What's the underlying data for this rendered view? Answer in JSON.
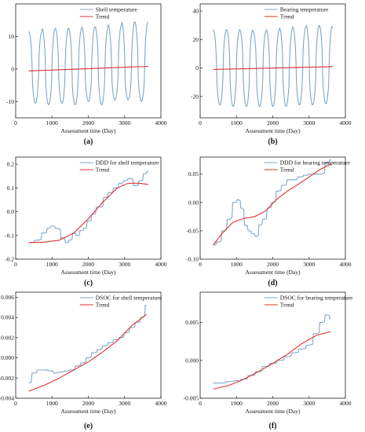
{
  "chart_data": [
    {
      "type": "line",
      "panel_label": "(a)",
      "xlabel": "Assessment time (Day)",
      "ylabel": "",
      "xlim": [
        0,
        4000
      ],
      "ylim": [
        -15,
        20
      ],
      "xticks": [
        "0",
        "1000",
        "2000",
        "3000",
        "4000"
      ],
      "yticks": [
        "-10",
        "0",
        "10"
      ],
      "yticks_values": [
        -10,
        0,
        10
      ],
      "legend_position": "top-right",
      "series": [
        {
          "name": "Shell temperature",
          "color": "#7fa7c6",
          "style": "seasonal",
          "x_start": 360,
          "x_end": 3650,
          "period": 365,
          "phase_day": 360,
          "baseline": 0,
          "amp_pos": [
            11.5,
            12.5,
            12.5,
            12.5,
            13,
            13,
            13.5,
            14.5,
            14.5,
            14.5
          ],
          "amp_neg": [
            -10.5,
            -11,
            -10.5,
            -11,
            -10,
            -11,
            -9.5,
            -9.5,
            -10,
            -9.5
          ]
        },
        {
          "name": "Trend",
          "color": "#e03030",
          "x": [
            360,
            3650
          ],
          "y": [
            -0.6,
            0.8
          ]
        }
      ]
    },
    {
      "type": "line",
      "panel_label": "(b)",
      "xlabel": "Assessment time (Day)",
      "ylabel": "",
      "xlim": [
        0,
        4000
      ],
      "ylim": [
        -35,
        45
      ],
      "xticks": [
        "0",
        "1000",
        "2000",
        "3000",
        "4000"
      ],
      "yticks": [
        "-20",
        "0",
        "20",
        "40"
      ],
      "yticks_values": [
        -20,
        0,
        20,
        40
      ],
      "legend_position": "top-right",
      "series": [
        {
          "name": "Bearing temperature",
          "color": "#7fa7c6",
          "style": "seasonal",
          "x_start": 360,
          "x_end": 3650,
          "period": 365,
          "phase_day": 360,
          "baseline": 0,
          "amp_pos": [
            27,
            27,
            27,
            26,
            27,
            28,
            29,
            30,
            30,
            28
          ],
          "amp_neg": [
            -26,
            -27,
            -27,
            -27,
            -27,
            -27,
            -26,
            -26,
            -25,
            -26
          ]
        },
        {
          "name": "Trend",
          "color": "#e03030",
          "x": [
            360,
            3650
          ],
          "y": [
            -1,
            1
          ]
        }
      ]
    },
    {
      "type": "line",
      "panel_label": "(c)",
      "xlabel": "Assessment time (Day)",
      "ylabel": "",
      "xlim": [
        0,
        4000
      ],
      "ylim": [
        -0.2,
        0.23
      ],
      "xticks": [
        "0",
        "1000",
        "2000",
        "3000",
        "4000"
      ],
      "yticks": [
        "-0.2",
        "-0.1",
        "0.0",
        "0.1",
        "0.2"
      ],
      "yticks_values": [
        -0.2,
        -0.1,
        0.0,
        0.1,
        0.2
      ],
      "legend_position": "top-right",
      "series": [
        {
          "name": "DDD for shell temperature",
          "color": "#7fa7c6",
          "style": "step",
          "x": [
            400,
            600,
            800,
            900,
            1000,
            1150,
            1300,
            1400,
            1500,
            1600,
            1700,
            1800,
            1900,
            2000,
            2150,
            2250,
            2350,
            2450,
            2600,
            2750,
            2900,
            3000,
            3150,
            3300,
            3450,
            3550,
            3650
          ],
          "y": [
            -0.13,
            -0.12,
            -0.09,
            -0.07,
            -0.06,
            -0.07,
            -0.11,
            -0.13,
            -0.12,
            -0.09,
            -0.1,
            -0.08,
            -0.07,
            -0.04,
            -0.01,
            0.02,
            0.02,
            0.06,
            0.08,
            0.1,
            0.12,
            0.13,
            0.14,
            0.11,
            0.13,
            0.16,
            0.17
          ]
        },
        {
          "name": "Trend",
          "color": "#e03030",
          "x": [
            360,
            800,
            1200,
            1600,
            2000,
            2400,
            2800,
            3100,
            3400,
            3650
          ],
          "y": [
            -0.13,
            -0.128,
            -0.12,
            -0.09,
            -0.03,
            0.04,
            0.1,
            0.12,
            0.12,
            0.115
          ]
        }
      ]
    },
    {
      "type": "line",
      "panel_label": "(d)",
      "xlabel": "Assessment time (Day)",
      "ylabel": "",
      "xlim": [
        0,
        4000
      ],
      "ylim": [
        -0.1,
        0.08
      ],
      "xticks": [
        "0",
        "1000",
        "2000",
        "3000",
        "4000"
      ],
      "yticks": [
        "-0.10",
        "-0.05",
        "0.00",
        "0.05"
      ],
      "yticks_values": [
        -0.1,
        -0.05,
        0.0,
        0.05
      ],
      "legend_position": "top-right",
      "series": [
        {
          "name": "DDD for bearing temperature",
          "color": "#7fa7c6",
          "style": "step",
          "x": [
            360,
            500,
            650,
            800,
            950,
            1050,
            1150,
            1250,
            1350,
            1450,
            1550,
            1650,
            1750,
            1900,
            2000,
            2150,
            2300,
            2450,
            2600,
            2750,
            2900,
            3050,
            3200,
            3350,
            3500,
            3600
          ],
          "y": [
            -0.075,
            -0.07,
            -0.05,
            -0.03,
            0.0,
            0.005,
            -0.01,
            -0.04,
            -0.05,
            -0.055,
            -0.06,
            -0.04,
            -0.03,
            -0.01,
            0.0,
            0.02,
            0.03,
            0.04,
            0.04,
            0.045,
            0.048,
            0.05,
            0.05,
            0.05,
            0.07,
            0.075
          ]
        },
        {
          "name": "Trend",
          "color": "#e03030",
          "x": [
            360,
            600,
            900,
            1200,
            1500,
            1800,
            2100,
            2400,
            2700,
            3000,
            3300,
            3600
          ],
          "y": [
            -0.075,
            -0.055,
            -0.035,
            -0.028,
            -0.025,
            -0.015,
            0.005,
            0.02,
            0.032,
            0.045,
            0.058,
            0.068
          ]
        }
      ]
    },
    {
      "type": "line",
      "panel_label": "(e)",
      "xlabel": "Assessment time (Day)",
      "ylabel": "",
      "xlim": [
        0,
        4000
      ],
      "ylim": [
        -0.004,
        0.0065
      ],
      "xticks": [
        "0",
        "1000",
        "2000",
        "3000",
        "4000"
      ],
      "yticks": [
        "-0.004",
        "-0.002",
        "0.000",
        "0.002",
        "0.004",
        "0.006"
      ],
      "yticks_values": [
        -0.004,
        -0.002,
        0.0,
        0.002,
        0.004,
        0.006
      ],
      "legend_position": "top-right",
      "series": [
        {
          "name": "DSOC for shell temperature",
          "color": "#7fa7c6",
          "style": "step",
          "x": [
            360,
            500,
            650,
            800,
            950,
            1100,
            1250,
            1400,
            1550,
            1700,
            1850,
            2000,
            2150,
            2300,
            2450,
            2600,
            2750,
            2900,
            3050,
            3200,
            3350,
            3500,
            3600
          ],
          "y": [
            -0.0025,
            -0.0015,
            -0.0012,
            -0.0012,
            -0.0013,
            -0.0015,
            -0.0014,
            -0.0013,
            -0.0012,
            -0.0008,
            -0.0005,
            0.0,
            0.0005,
            0.0008,
            0.0012,
            0.0015,
            0.0018,
            0.002,
            0.0025,
            0.003,
            0.0035,
            0.004,
            0.0052
          ]
        },
        {
          "name": "Trend",
          "color": "#e03030",
          "x": [
            360,
            800,
            1200,
            1600,
            2000,
            2400,
            2800,
            3200,
            3600
          ],
          "y": [
            -0.0033,
            -0.0027,
            -0.002,
            -0.0012,
            -0.0004,
            0.0006,
            0.0017,
            0.0032,
            0.0043
          ]
        }
      ]
    },
    {
      "type": "line",
      "panel_label": "(f)",
      "xlabel": "Assessment time (Day)",
      "ylabel": "",
      "xlim": [
        0,
        4000
      ],
      "ylim": [
        -0.005,
        0.009
      ],
      "xticks": [
        "0",
        "1000",
        "2000",
        "3000",
        "4000"
      ],
      "yticks": [
        "-0.005",
        "0.000",
        "0.005"
      ],
      "yticks_values": [
        -0.005,
        0.0,
        0.005
      ],
      "legend_position": "top-right",
      "series": [
        {
          "name": "DSOC for bearing temperature",
          "color": "#7fa7c6",
          "style": "step",
          "x": [
            360,
            600,
            800,
            1000,
            1200,
            1400,
            1600,
            1800,
            2000,
            2200,
            2400,
            2600,
            2800,
            3000,
            3200,
            3350,
            3500,
            3600
          ],
          "y": [
            -0.003,
            -0.003,
            -0.0028,
            -0.0027,
            -0.0025,
            -0.002,
            -0.0015,
            -0.0008,
            -0.0004,
            0.0,
            0.0005,
            0.001,
            0.0015,
            0.002,
            0.0035,
            0.005,
            0.006,
            0.0055
          ]
        },
        {
          "name": "Trend",
          "color": "#e03030",
          "x": [
            360,
            800,
            1200,
            1600,
            2000,
            2400,
            2800,
            3200,
            3600
          ],
          "y": [
            -0.0038,
            -0.0033,
            -0.0025,
            -0.0015,
            -0.0004,
            0.0008,
            0.0022,
            0.0033,
            0.0038
          ]
        }
      ]
    }
  ]
}
